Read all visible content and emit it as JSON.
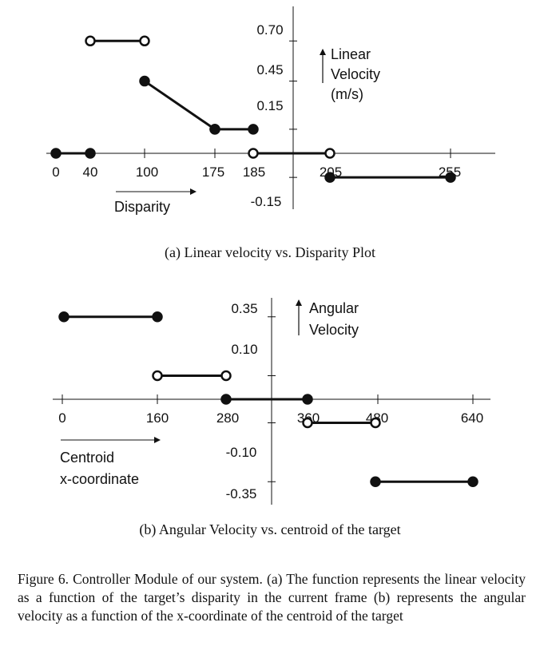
{
  "chart_data": [
    {
      "type": "line",
      "caption": "(a) Linear velocity vs. Disparity Plot",
      "xlabel": "Disparity",
      "ylabel_lines": [
        "Linear",
        "Velocity",
        "(m/s)"
      ],
      "xticks": [
        0,
        40,
        100,
        175,
        185,
        205,
        255
      ],
      "yticks": [
        0.7,
        0.45,
        0.15,
        -0.15
      ],
      "ytick_labels": [
        "0.70",
        "0.45",
        "0.15",
        "-0.15"
      ],
      "segments": [
        {
          "x": [
            0,
            40
          ],
          "y": [
            0,
            0
          ],
          "start": "closed",
          "end": "closed"
        },
        {
          "x": [
            40,
            100
          ],
          "y": [
            0.7,
            0.7
          ],
          "start": "open",
          "end": "open"
        },
        {
          "x": [
            100,
            175
          ],
          "y": [
            0.45,
            0.15
          ],
          "start": "closed",
          "end": "closed"
        },
        {
          "x": [
            175,
            185
          ],
          "y": [
            0.15,
            0.15
          ],
          "start": "closed",
          "end": "closed"
        },
        {
          "x": [
            185,
            205
          ],
          "y": [
            0,
            0
          ],
          "start": "open",
          "end": "open"
        },
        {
          "x": [
            205,
            255
          ],
          "y": [
            -0.15,
            -0.15
          ],
          "start": "closed",
          "end": "closed"
        }
      ]
    },
    {
      "type": "line",
      "caption": "(b) Angular Velocity vs. centroid of the target",
      "xlabel_lines": [
        "Centroid",
        "x-coordinate"
      ],
      "ylabel_lines": [
        "Angular",
        "Velocity"
      ],
      "xticks": [
        0,
        160,
        280,
        360,
        480,
        640
      ],
      "yticks": [
        0.35,
        0.1,
        -0.1,
        -0.35
      ],
      "ytick_labels": [
        "0.35",
        "0.10",
        "-0.10",
        "-0.35"
      ],
      "segments": [
        {
          "x": [
            0,
            160
          ],
          "y": [
            0.35,
            0.35
          ],
          "start": "closed",
          "end": "closed"
        },
        {
          "x": [
            160,
            280
          ],
          "y": [
            0.1,
            0.1
          ],
          "start": "open",
          "end": "open"
        },
        {
          "x": [
            280,
            360
          ],
          "y": [
            0,
            0
          ],
          "start": "closed",
          "end": "closed"
        },
        {
          "x": [
            360,
            480
          ],
          "y": [
            -0.1,
            -0.1
          ],
          "start": "open",
          "end": "open"
        },
        {
          "x": [
            480,
            640
          ],
          "y": [
            -0.35,
            -0.35
          ],
          "start": "closed",
          "end": "closed"
        }
      ]
    }
  ],
  "figure_caption": "Figure 6.   Controller Module of our system. (a) The function represents the linear velocity as a function of the target’s disparity in the current frame (b) represents the angular velocity as a function of the x-coordinate of the centroid of the target"
}
